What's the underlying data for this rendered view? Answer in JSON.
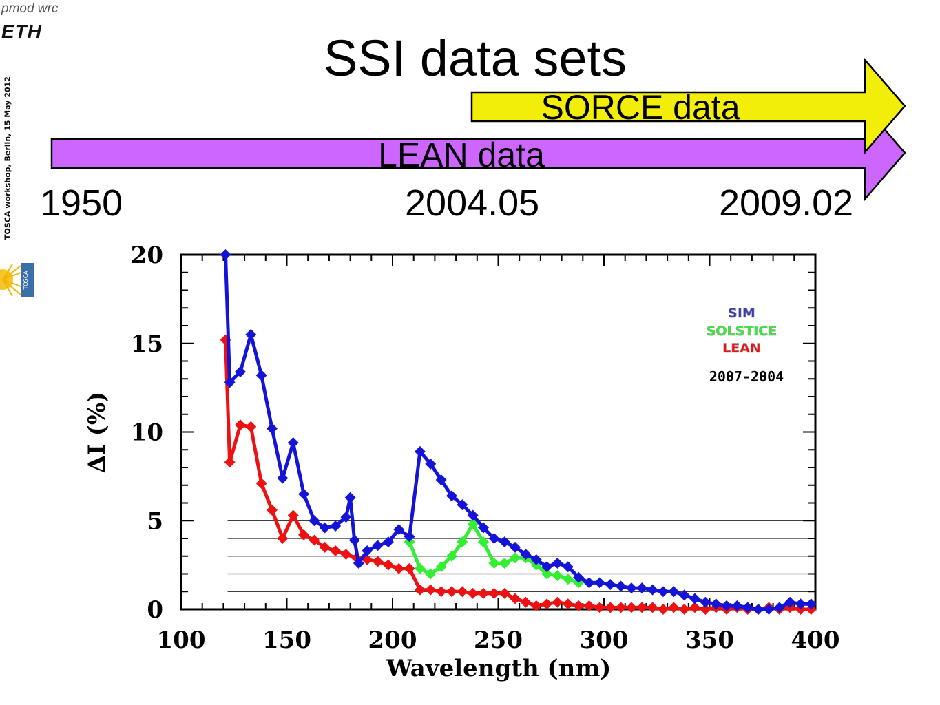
{
  "header": {
    "logo_top": "pmod  wrc",
    "logo_bottom": "ETH",
    "side_caption": "TOSCA workshop, Berlin,  15 May 2012",
    "badge_letters": "TOSCA"
  },
  "slide": {
    "title": "SSI data sets"
  },
  "timeline": {
    "bars": [
      {
        "label": "SORCE data",
        "color": "#f2ee0a"
      },
      {
        "label": "LEAN data",
        "color": "#cc66ff"
      }
    ],
    "years": [
      "1950",
      "2004.05",
      "2009.02"
    ]
  },
  "chart_data": {
    "type": "line",
    "xlabel": "Wavelength (nm)",
    "ylabel": "ΔI (%)",
    "xlim": [
      100,
      400
    ],
    "ylim": [
      0,
      20
    ],
    "xticks": [
      100,
      150,
      200,
      250,
      300,
      350,
      400
    ],
    "yticks": [
      0,
      5,
      10,
      15,
      20
    ],
    "reference_lines": [
      1,
      2,
      3,
      4,
      5
    ],
    "legend": {
      "position": "top-right",
      "entries": [
        {
          "name": "SIM",
          "color": "#3a3ab8"
        },
        {
          "name": "SOLSTICE",
          "color": "#33ee33"
        },
        {
          "name": "LEAN",
          "color": "#ee1111"
        }
      ],
      "period": "2007-2004"
    },
    "series": [
      {
        "name": "LEAN",
        "color": "#ee1111",
        "x": [
          121,
          123,
          128,
          133,
          138,
          143,
          148,
          153,
          158,
          163,
          168,
          173,
          178,
          183,
          188,
          193,
          198,
          203,
          208,
          213,
          218,
          223,
          228,
          233,
          238,
          243,
          248,
          253,
          258,
          263,
          268,
          273,
          278,
          283,
          288,
          293,
          298,
          303,
          308,
          313,
          318,
          323,
          328,
          333,
          338,
          343,
          348,
          353,
          358,
          363,
          368,
          373,
          378,
          383,
          388,
          393,
          398
        ],
        "y": [
          15.2,
          8.3,
          10.4,
          10.3,
          7.1,
          5.6,
          4.0,
          5.3,
          4.2,
          3.9,
          3.5,
          3.3,
          3.1,
          2.9,
          2.8,
          2.7,
          2.5,
          2.3,
          2.3,
          1.1,
          1.1,
          1.0,
          1.0,
          1.0,
          0.9,
          0.9,
          0.9,
          0.9,
          0.6,
          0.4,
          0.2,
          0.3,
          0.4,
          0.3,
          0.2,
          0.2,
          0.1,
          0.1,
          0.1,
          0.1,
          0.1,
          0.1,
          0.0,
          0.1,
          0.0,
          0.1,
          0.0,
          0.1,
          0.0,
          0.1,
          0.0,
          0.0,
          0.1,
          0.0,
          0.1,
          0.0,
          0.0
        ]
      },
      {
        "name": "SOLSTICE",
        "color": "#33ee33",
        "x": [
          208,
          213,
          218,
          223,
          228,
          233,
          238,
          243,
          248,
          253,
          258,
          263,
          268,
          273,
          278,
          283,
          288
        ],
        "y": [
          3.8,
          2.3,
          2.0,
          2.4,
          3.0,
          3.8,
          4.8,
          3.8,
          2.6,
          2.6,
          2.9,
          2.9,
          2.5,
          2.0,
          1.9,
          1.7,
          1.5
        ]
      },
      {
        "name": "SIM",
        "color": "#1414d8",
        "x": [
          121,
          123,
          128,
          133,
          138,
          143,
          148,
          153,
          158,
          163,
          168,
          173,
          178,
          180,
          182,
          184,
          188,
          193,
          198,
          203,
          208,
          213,
          218,
          223,
          228,
          233,
          238,
          243,
          248,
          253,
          258,
          263,
          268,
          273,
          278,
          283,
          288,
          293,
          298,
          303,
          308,
          313,
          318,
          323,
          328,
          333,
          338,
          343,
          348,
          353,
          358,
          363,
          368,
          373,
          378,
          383,
          388,
          393,
          398
        ],
        "y": [
          20.0,
          12.8,
          13.4,
          15.5,
          13.2,
          10.2,
          7.4,
          9.4,
          6.5,
          5.0,
          4.6,
          4.7,
          5.2,
          6.3,
          3.9,
          2.6,
          3.3,
          3.6,
          3.8,
          4.5,
          4.1,
          8.9,
          8.2,
          7.3,
          6.4,
          5.9,
          5.3,
          4.6,
          4.0,
          3.8,
          3.5,
          3.1,
          2.8,
          2.4,
          2.6,
          2.4,
          1.8,
          1.5,
          1.5,
          1.4,
          1.3,
          1.2,
          1.2,
          1.1,
          1.0,
          1.0,
          0.8,
          0.6,
          0.4,
          0.3,
          0.2,
          0.2,
          0.1,
          0.0,
          0.0,
          0.1,
          0.4,
          0.3,
          0.3
        ]
      }
    ]
  }
}
